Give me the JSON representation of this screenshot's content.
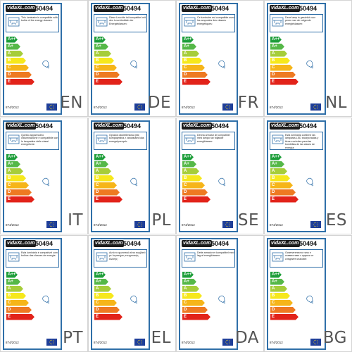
{
  "brand": "vidaXL.com",
  "code": "50494",
  "regulation": "874/2012",
  "classes": [
    {
      "label": "A++",
      "color": "#1e9e3a"
    },
    {
      "label": "A+",
      "color": "#55b848"
    },
    {
      "label": "A",
      "color": "#a6cd3a"
    },
    {
      "label": "B",
      "color": "#f6e81c"
    },
    {
      "label": "C",
      "color": "#f6b519"
    },
    {
      "label": "D",
      "color": "#ee7a22"
    },
    {
      "label": "E",
      "color": "#e2231a"
    }
  ],
  "icons": {
    "lamp": "lamp-icon",
    "bulb": "bulb-icon",
    "flag": "eu-flag-icon"
  },
  "panels": [
    {
      "lang": "EN",
      "text": "This luminaire is compatible with bulbs of the energy classes:"
    },
    {
      "lang": "DE",
      "text": "Diese Leuchte ist kompatibel mit den Leuchtmitteln der Energieklassen:"
    },
    {
      "lang": "FR",
      "text": "Ce luminaire est compatible avec les ampoules des classes énergétiques:"
    },
    {
      "lang": "NL",
      "text": "Deze lamp is geschikt voor peren van de volgende energieklassen:"
    },
    {
      "lang": "IT",
      "text": "Questo apparecchio d'illuminazione è compatibile con le lampadine delle classi energetiche:"
    },
    {
      "lang": "PL",
      "text": "Oprawa oświetleniowa jest kompatybilna z żarówkami klas energetycznych:"
    },
    {
      "lang": "SE",
      "text": "Denna armatur är kompatibel med lampor av följande energiklasser:"
    },
    {
      "lang": "ES",
      "text": "Esta luminaria contiene las lámparas LED incorporadas y tiene enchufes para las bombillas de las clases de energía:"
    },
    {
      "lang": "PT",
      "text": "Esta luminária é compatível com bolbos das classes de energia:"
    },
    {
      "lang": "EL",
      "text": "Αυτό το φωτιστικό είναι συμβατό με λαμπτήρες ενεργειακής κλάσης:"
    },
    {
      "lang": "DA",
      "text": "Dette armatur er kompatibel med løg af energiklassen:"
    },
    {
      "lang": "BG",
      "text": "Осветителното тяло е съвместимо с крушки от следните класове:"
    }
  ]
}
